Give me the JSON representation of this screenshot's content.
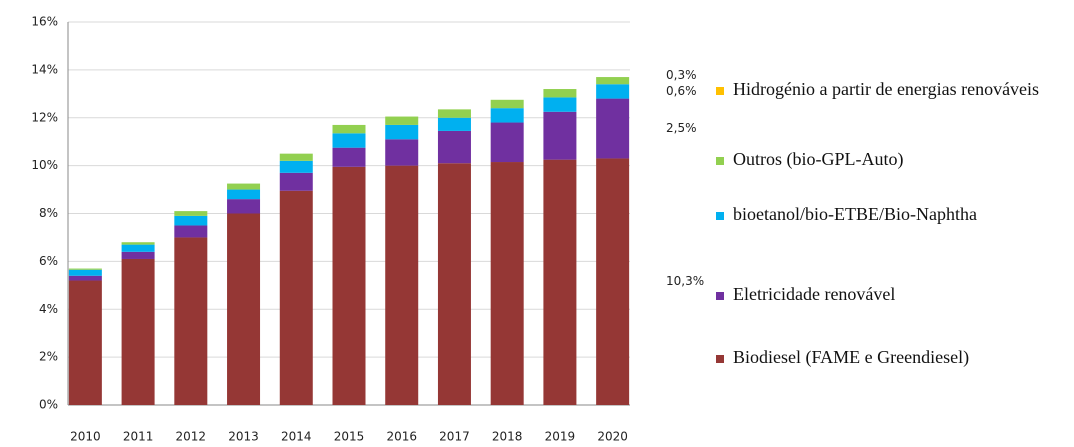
{
  "chart_data": {
    "type": "stacked-bar",
    "categories": [
      "2010",
      "2011",
      "2012",
      "2013",
      "2014",
      "2015",
      "2016",
      "2017",
      "2018",
      "2019",
      "2020"
    ],
    "series": [
      {
        "name": "Biodiesel (FAME e Greendiesel)",
        "color": "#953735",
        "values": [
          5.2,
          6.1,
          7.0,
          8.0,
          8.95,
          9.95,
          10.0,
          10.1,
          10.15,
          10.25,
          10.3
        ],
        "value_labels": [
          null,
          null,
          null,
          null,
          null,
          null,
          null,
          null,
          null,
          null,
          "10,3%"
        ]
      },
      {
        "name": "Eletricidade renovável",
        "color": "#7030a0",
        "values": [
          0.2,
          0.3,
          0.5,
          0.6,
          0.75,
          0.8,
          1.1,
          1.35,
          1.65,
          2.0,
          2.5
        ],
        "value_labels": [
          null,
          null,
          null,
          null,
          null,
          null,
          null,
          null,
          null,
          null,
          "2,5%"
        ]
      },
      {
        "name": "bioetanol/bio-ETBE/Bio-Naphtha",
        "color": "#00b0f0",
        "values": [
          0.25,
          0.3,
          0.4,
          0.4,
          0.5,
          0.6,
          0.6,
          0.55,
          0.6,
          0.6,
          0.6
        ],
        "value_labels": [
          null,
          null,
          null,
          null,
          null,
          null,
          null,
          null,
          null,
          null,
          "0,6%"
        ]
      },
      {
        "name": "Outros (bio-GPL-Auto)",
        "color": "#92d050",
        "values": [
          0.05,
          0.1,
          0.2,
          0.25,
          0.3,
          0.35,
          0.35,
          0.35,
          0.35,
          0.35,
          0.3
        ],
        "value_labels": [
          null,
          null,
          null,
          null,
          null,
          null,
          null,
          null,
          null,
          null,
          "0,3%"
        ]
      },
      {
        "name": "Hidrogénio a partir  de energias renováveis",
        "color": "#ffc000",
        "values": [
          0,
          0,
          0,
          0,
          0,
          0,
          0,
          0,
          0,
          0,
          0
        ]
      }
    ],
    "ylim": [
      0,
      16
    ],
    "yticks": [
      {
        "value": 0,
        "label": "0%"
      },
      {
        "value": 2,
        "label": "2%"
      },
      {
        "value": 4,
        "label": "4%"
      },
      {
        "value": 6,
        "label": "6%"
      },
      {
        "value": 8,
        "label": "8%"
      },
      {
        "value": 10,
        "label": "10%"
      },
      {
        "value": 12,
        "label": "12%"
      },
      {
        "value": 14,
        "label": "14%"
      },
      {
        "value": 16,
        "label": "16%"
      }
    ],
    "grid": true,
    "legend": "right"
  }
}
